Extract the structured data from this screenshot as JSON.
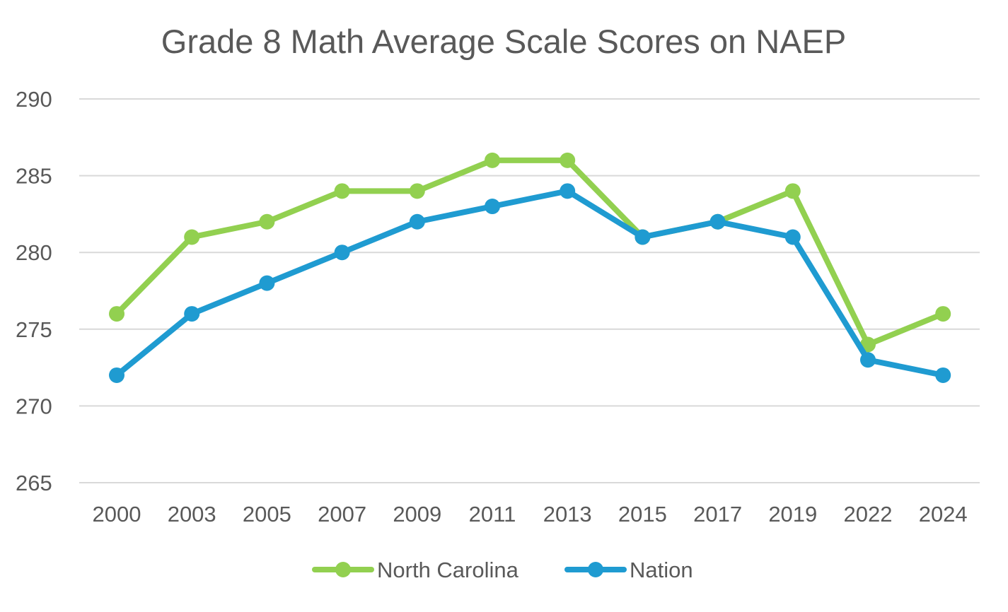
{
  "chart_data": {
    "type": "line",
    "title": "Grade 8 Math Average Scale Scores on NAEP",
    "xlabel": "",
    "ylabel": "",
    "categories": [
      "2000",
      "2003",
      "2005",
      "2007",
      "2009",
      "2011",
      "2013",
      "2015",
      "2017",
      "2019",
      "2022",
      "2024"
    ],
    "ylim": [
      265,
      290
    ],
    "yticks": [
      "265",
      "270",
      "275",
      "280",
      "285",
      "290"
    ],
    "grid": true,
    "legend_position": "bottom",
    "series": [
      {
        "name": "North Carolina",
        "color": "#92d050",
        "values": [
          276,
          281,
          282,
          284,
          284,
          286,
          286,
          281,
          282,
          284,
          274,
          276
        ]
      },
      {
        "name": "Nation",
        "color": "#1f9bd1",
        "values": [
          272,
          276,
          278,
          280,
          282,
          283,
          284,
          281,
          282,
          281,
          273,
          272
        ]
      }
    ]
  }
}
